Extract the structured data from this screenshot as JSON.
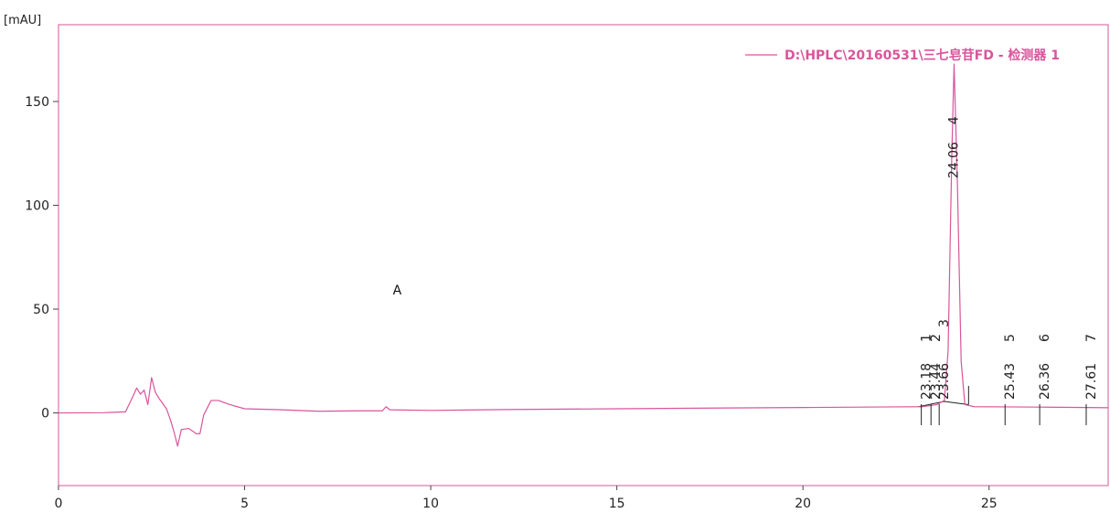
{
  "chart_data": {
    "type": "line",
    "ylabel": "[mAU]",
    "xlim": [
      0,
      28.2
    ],
    "ylim": [
      -35,
      187
    ],
    "x_ticks": [
      0,
      5,
      10,
      15,
      20,
      25
    ],
    "y_ticks": [
      0,
      50,
      100,
      150
    ],
    "grid": false,
    "legend_position": "top-right",
    "series": [
      {
        "name": "D:\\HPLC\\20160531\\三七皂苷FD - 检测器 1",
        "color": "#d9559b",
        "points": [
          [
            0,
            0
          ],
          [
            1.2,
            0.1
          ],
          [
            1.8,
            0.5
          ],
          [
            2.0,
            8
          ],
          [
            2.1,
            12
          ],
          [
            2.2,
            9
          ],
          [
            2.3,
            11
          ],
          [
            2.4,
            4
          ],
          [
            2.5,
            17
          ],
          [
            2.6,
            10
          ],
          [
            2.7,
            7
          ],
          [
            2.9,
            2
          ],
          [
            3.0,
            -3
          ],
          [
            3.1,
            -9
          ],
          [
            3.2,
            -16
          ],
          [
            3.3,
            -8
          ],
          [
            3.5,
            -7.5
          ],
          [
            3.7,
            -10
          ],
          [
            3.8,
            -10
          ],
          [
            3.9,
            -1
          ],
          [
            4.1,
            6
          ],
          [
            4.3,
            6
          ],
          [
            4.6,
            4
          ],
          [
            5.0,
            2
          ],
          [
            6.0,
            1.5
          ],
          [
            7.0,
            0.8
          ],
          [
            8.0,
            1
          ],
          [
            8.7,
            1
          ],
          [
            8.8,
            3
          ],
          [
            8.9,
            1.5
          ],
          [
            10,
            1.2
          ],
          [
            12,
            1.6
          ],
          [
            15,
            2
          ],
          [
            18,
            2.4
          ],
          [
            20,
            2.6
          ],
          [
            22.5,
            2.9
          ],
          [
            23.2,
            3
          ],
          [
            23.4,
            3.5
          ],
          [
            23.6,
            4
          ],
          [
            23.8,
            6
          ],
          [
            23.9,
            30
          ],
          [
            24.0,
            125
          ],
          [
            24.06,
            168
          ],
          [
            24.15,
            110
          ],
          [
            24.25,
            25
          ],
          [
            24.35,
            4
          ],
          [
            24.6,
            3
          ],
          [
            25.4,
            2.9
          ],
          [
            26.4,
            2.8
          ],
          [
            27.6,
            2.6
          ],
          [
            28.2,
            2.5
          ]
        ]
      }
    ],
    "baseline": [
      [
        23.1,
        3
      ],
      [
        23.8,
        5.5
      ],
      [
        24.45,
        4
      ]
    ],
    "peaks": [
      {
        "id": "1",
        "rt": "23.18",
        "x": 23.18,
        "y": 3
      },
      {
        "id": "2",
        "rt": "23.44",
        "x": 23.44,
        "y": 3.5
      },
      {
        "id": "3",
        "rt": "23.66",
        "x": 23.66,
        "y": 4
      },
      {
        "id": "4",
        "rt": "24.06",
        "x": 24.06,
        "y": 168
      },
      {
        "id": "5",
        "rt": "25.43",
        "x": 25.43,
        "y": 2.9
      },
      {
        "id": "6",
        "rt": "26.36",
        "x": 26.36,
        "y": 2.8
      },
      {
        "id": "7",
        "rt": "27.61",
        "x": 27.61,
        "y": 2.6
      }
    ],
    "annotations": [
      {
        "text": "A",
        "x": 9.1,
        "y": 57
      }
    ]
  }
}
